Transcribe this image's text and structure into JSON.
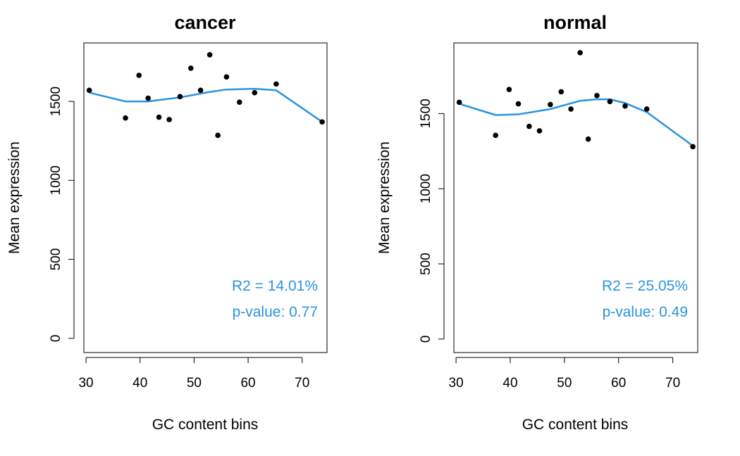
{
  "chart_data": [
    {
      "type": "scatter",
      "title": "cancer",
      "xlabel": "GC content bins",
      "ylabel": "Mean expression",
      "xlim": [
        29.6,
        74.6
      ],
      "ylim": [
        -90,
        1870
      ],
      "xticks": [
        30,
        40,
        50,
        60,
        70
      ],
      "yticks": [
        0,
        500,
        1000,
        1500
      ],
      "grid": false,
      "points": [
        {
          "x": 30.6,
          "y": 1570
        },
        {
          "x": 37.3,
          "y": 1395
        },
        {
          "x": 39.8,
          "y": 1665
        },
        {
          "x": 41.5,
          "y": 1520
        },
        {
          "x": 43.5,
          "y": 1400
        },
        {
          "x": 45.4,
          "y": 1385
        },
        {
          "x": 47.4,
          "y": 1530
        },
        {
          "x": 49.4,
          "y": 1710
        },
        {
          "x": 51.2,
          "y": 1570
        },
        {
          "x": 52.9,
          "y": 1795
        },
        {
          "x": 54.4,
          "y": 1285
        },
        {
          "x": 56.0,
          "y": 1655
        },
        {
          "x": 58.4,
          "y": 1495
        },
        {
          "x": 61.2,
          "y": 1555
        },
        {
          "x": 65.2,
          "y": 1610
        },
        {
          "x": 73.7,
          "y": 1370
        }
      ],
      "fit": {
        "x": [
          30.6,
          37.3,
          41.5,
          47.4,
          52.9,
          56.0,
          61.2,
          65.2,
          73.7
        ],
        "y": [
          1555,
          1500,
          1500,
          1525,
          1560,
          1575,
          1580,
          1570,
          1370
        ]
      },
      "annotations": [
        "R2 = 14.01%",
        "p-value: 0.77"
      ]
    },
    {
      "type": "scatter",
      "title": "normal",
      "xlabel": "GC content bins",
      "ylabel": "Mean expression",
      "xlim": [
        29.6,
        74.6
      ],
      "ylim": [
        -90,
        1970
      ],
      "xticks": [
        30,
        40,
        50,
        60,
        70
      ],
      "yticks": [
        0,
        500,
        1000,
        1500
      ],
      "grid": false,
      "points": [
        {
          "x": 30.6,
          "y": 1575
        },
        {
          "x": 37.3,
          "y": 1355
        },
        {
          "x": 39.8,
          "y": 1660
        },
        {
          "x": 41.5,
          "y": 1565
        },
        {
          "x": 43.5,
          "y": 1415
        },
        {
          "x": 45.4,
          "y": 1385
        },
        {
          "x": 47.4,
          "y": 1560
        },
        {
          "x": 49.4,
          "y": 1645
        },
        {
          "x": 51.2,
          "y": 1530
        },
        {
          "x": 52.9,
          "y": 1905
        },
        {
          "x": 54.4,
          "y": 1330
        },
        {
          "x": 56.0,
          "y": 1620
        },
        {
          "x": 58.4,
          "y": 1580
        },
        {
          "x": 61.2,
          "y": 1550
        },
        {
          "x": 65.2,
          "y": 1530
        },
        {
          "x": 73.7,
          "y": 1280
        }
      ],
      "fit": {
        "x": [
          30.6,
          37.3,
          41.5,
          47.4,
          52.9,
          56.0,
          58.4,
          61.2,
          65.2,
          73.7
        ],
        "y": [
          1565,
          1490,
          1495,
          1530,
          1585,
          1595,
          1595,
          1570,
          1510,
          1285
        ]
      },
      "annotations": [
        "R2 = 25.05%",
        "p-value: 0.49"
      ]
    }
  ],
  "colors": {
    "fit_line": "#2a94e0",
    "points": "#000000",
    "annotation": "#2a94e0"
  }
}
